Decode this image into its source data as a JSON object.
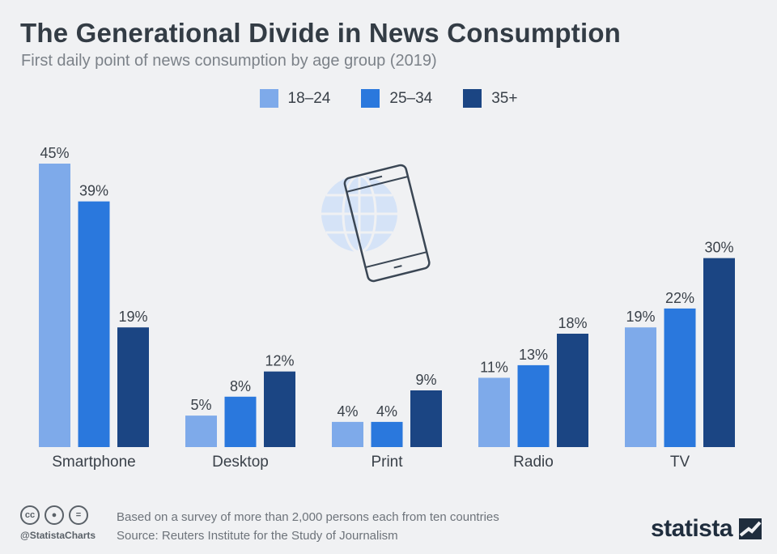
{
  "header": {
    "title": "The Generational Divide in News Consumption",
    "subtitle": "First daily point of news consumption by age group (2019)"
  },
  "footer": {
    "note": "Based on a survey of more than 2,000 persons each from ten countries",
    "source": "Source: Reuters Institute for the Study of Journalism",
    "handle": "@StatistaCharts",
    "brand": "statista",
    "icons": [
      "creative-commons-icon",
      "attribution-icon",
      "no-derivatives-icon"
    ]
  },
  "chart_data": {
    "type": "bar",
    "title": "The Generational Divide in News Consumption",
    "subtitle": "First daily point of news consumption by age group (2019)",
    "categories": [
      "Smartphone",
      "Desktop",
      "Print",
      "Radio",
      "TV"
    ],
    "series": [
      {
        "name": "18–24",
        "color": "#7eaaea",
        "values": [
          45,
          5,
          4,
          11,
          19
        ]
      },
      {
        "name": "25–34",
        "color": "#2a78dd",
        "values": [
          39,
          8,
          4,
          13,
          22
        ]
      },
      {
        "name": "35+",
        "color": "#1b4583",
        "values": [
          19,
          12,
          9,
          18,
          30
        ]
      }
    ],
    "value_suffix": "%",
    "ylim": [
      0,
      45
    ],
    "grid": false,
    "legend": "top-center"
  }
}
